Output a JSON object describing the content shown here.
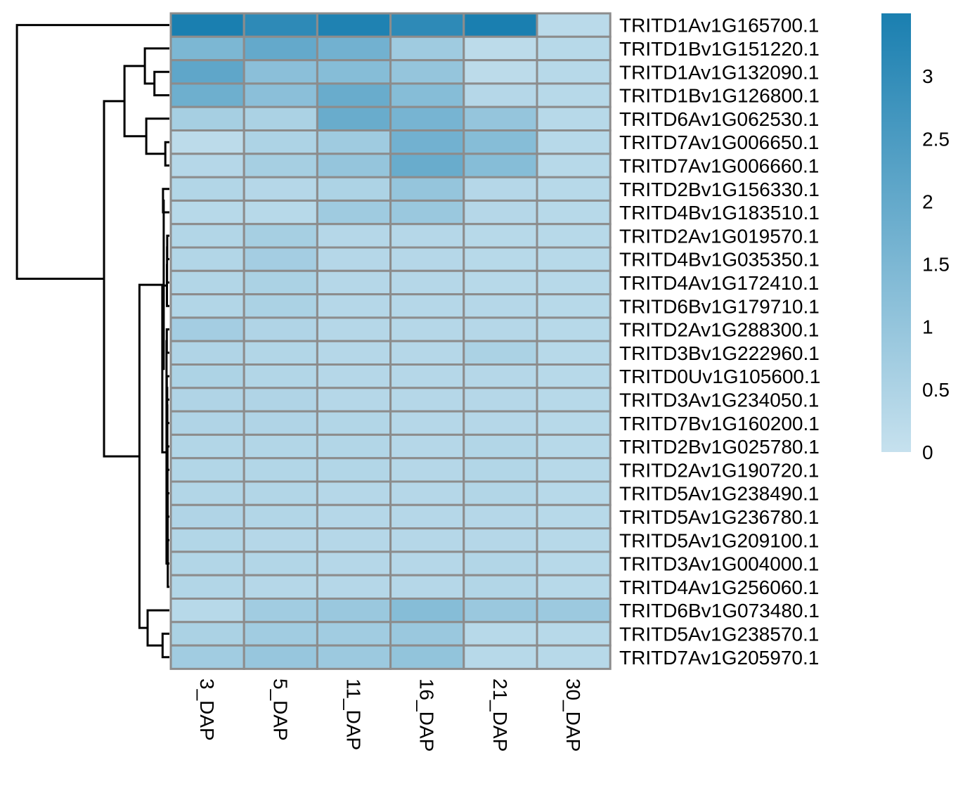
{
  "chart_data": {
    "type": "heatmap",
    "title": "",
    "columns": [
      "3_DAP",
      "5_DAP",
      "11_DAP",
      "16_DAP",
      "21_DAP",
      "30_DAP"
    ],
    "rows": [
      "TRITD1Av1G165700.1",
      "TRITD1Bv1G151220.1",
      "TRITD1Av1G132090.1",
      "TRITD1Bv1G126800.1",
      "TRITD6Av1G062530.1",
      "TRITD7Av1G006650.1",
      "TRITD7Av1G006660.1",
      "TRITD2Bv1G156330.1",
      "TRITD4Bv1G183510.1",
      "TRITD2Av1G019570.1",
      "TRITD4Bv1G035350.1",
      "TRITD4Av1G172410.1",
      "TRITD6Bv1G179710.1",
      "TRITD2Av1G288300.1",
      "TRITD3Bv1G222960.1",
      "TRITD0Uv1G105600.1",
      "TRITD3Av1G234050.1",
      "TRITD7Bv1G160200.1",
      "TRITD2Bv1G025780.1",
      "TRITD2Av1G190720.1",
      "TRITD5Av1G238490.1",
      "TRITD5Av1G236780.1",
      "TRITD5Av1G209100.1",
      "TRITD3Av1G004000.1",
      "TRITD4Av1G256060.1",
      "TRITD6Bv1G073480.1",
      "TRITD5Av1G238570.1",
      "TRITD7Av1G205970.1"
    ],
    "values": [
      [
        3.5,
        3.1,
        3.4,
        3.1,
        3.5,
        0.25
      ],
      [
        1.5,
        2.0,
        1.7,
        0.8,
        0.2,
        0.3
      ],
      [
        2.1,
        1.2,
        1.3,
        1.0,
        0.2,
        0.3
      ],
      [
        1.8,
        1.2,
        1.9,
        1.3,
        0.35,
        0.3
      ],
      [
        0.65,
        0.55,
        1.9,
        1.6,
        1.0,
        0.3
      ],
      [
        0.2,
        0.5,
        0.8,
        1.7,
        1.3,
        0.3
      ],
      [
        0.35,
        0.65,
        1.0,
        1.9,
        1.3,
        0.3
      ],
      [
        0.4,
        0.35,
        0.5,
        1.0,
        0.35,
        0.3
      ],
      [
        0.3,
        0.3,
        0.8,
        0.9,
        0.35,
        0.3
      ],
      [
        0.4,
        0.65,
        0.35,
        0.35,
        0.3,
        0.3
      ],
      [
        0.4,
        0.7,
        0.35,
        0.35,
        0.3,
        0.3
      ],
      [
        0.4,
        0.55,
        0.35,
        0.35,
        0.3,
        0.3
      ],
      [
        0.4,
        0.55,
        0.35,
        0.35,
        0.35,
        0.3
      ],
      [
        0.7,
        0.45,
        0.35,
        0.35,
        0.35,
        0.3
      ],
      [
        0.45,
        0.4,
        0.35,
        0.35,
        0.55,
        0.3
      ],
      [
        0.5,
        0.4,
        0.35,
        0.35,
        0.35,
        0.3
      ],
      [
        0.45,
        0.45,
        0.35,
        0.35,
        0.35,
        0.3
      ],
      [
        0.45,
        0.45,
        0.4,
        0.35,
        0.35,
        0.3
      ],
      [
        0.4,
        0.4,
        0.4,
        0.35,
        0.4,
        0.3
      ],
      [
        0.4,
        0.4,
        0.4,
        0.35,
        0.4,
        0.3
      ],
      [
        0.4,
        0.4,
        0.35,
        0.35,
        0.4,
        0.3
      ],
      [
        0.45,
        0.4,
        0.35,
        0.35,
        0.35,
        0.3
      ],
      [
        0.4,
        0.35,
        0.35,
        0.35,
        0.35,
        0.3
      ],
      [
        0.4,
        0.4,
        0.35,
        0.35,
        0.4,
        0.3
      ],
      [
        0.4,
        0.35,
        0.35,
        0.35,
        0.4,
        0.3
      ],
      [
        0.3,
        0.75,
        0.9,
        1.3,
        0.9,
        0.85
      ],
      [
        0.55,
        0.75,
        0.75,
        0.9,
        0.3,
        0.3
      ],
      [
        0.75,
        0.95,
        0.85,
        1.05,
        0.3,
        0.3
      ]
    ],
    "colorscale": {
      "min": 0,
      "max": 3.5,
      "low_color": "#c6e1ee",
      "high_color": "#1a7fb0"
    },
    "legend": {
      "ticks": [
        "0",
        "0.5",
        "1",
        "1.5",
        "2",
        "2.5",
        "3"
      ],
      "placement": "right"
    },
    "row_dendrogram": "left",
    "grid_color": "#8c8c8c"
  }
}
